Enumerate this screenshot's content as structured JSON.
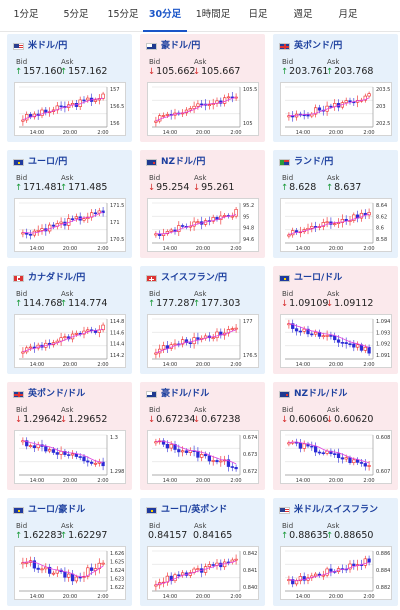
{
  "tabs": [
    {
      "label": "1分足",
      "active": false
    },
    {
      "label": "5分足",
      "active": false
    },
    {
      "label": "15分足",
      "active": false
    },
    {
      "label": "30分足",
      "active": true
    },
    {
      "label": "1時間足",
      "active": false
    },
    {
      "label": "日足",
      "active": false
    },
    {
      "label": "週足",
      "active": false
    },
    {
      "label": "月足",
      "active": false
    }
  ],
  "labels": {
    "bid": "Bid",
    "ask": "Ask"
  },
  "colors": {
    "up_card": "#e7f1fb",
    "down_card": "#fbe9ec",
    "up_arrow": "#1a9a3a",
    "down_arrow": "#d62a2a",
    "candle_up": "#ee2222",
    "candle_down": "#2b2bd6",
    "moving_average": "#e040e0",
    "tab_active": "#1a55c8"
  },
  "pairs": [
    {
      "name": "米ドル/円",
      "flag": "us",
      "direction": "up",
      "bid": "157.160",
      "ask": "157.162",
      "chart": {
        "x_labels": [
          "14:00",
          "20:00",
          "2:00"
        ],
        "y_labels": [
          "157",
          "156.5",
          "156"
        ],
        "trend": "up"
      }
    },
    {
      "name": "豪ドル/円",
      "flag": "au",
      "direction": "down",
      "bid": "105.662",
      "ask": "105.667",
      "chart": {
        "x_labels": [
          "14:00",
          "20:00",
          "2:00"
        ],
        "y_labels": [
          "105.5",
          "105"
        ],
        "trend": "up"
      }
    },
    {
      "name": "英ポンド/円",
      "flag": "gb",
      "direction": "up",
      "bid": "203.761",
      "ask": "203.768",
      "chart": {
        "x_labels": [
          "14:00",
          "20:00",
          "2:00"
        ],
        "y_labels": [
          "203.5",
          "203",
          "202.5"
        ],
        "trend": "up"
      }
    },
    {
      "name": "ユーロ/円",
      "flag": "eu",
      "direction": "up",
      "bid": "171.481",
      "ask": "171.485",
      "chart": {
        "x_labels": [
          "14:00",
          "20:00",
          "2:00"
        ],
        "y_labels": [
          "171.5",
          "171",
          "170.5"
        ],
        "trend": "up"
      }
    },
    {
      "name": "NZドル/円",
      "flag": "nz",
      "direction": "down",
      "bid": "95.254",
      "ask": "95.261",
      "chart": {
        "x_labels": [
          "14:00",
          "20:00",
          "2:00"
        ],
        "y_labels": [
          "95.2",
          "95",
          "94.8",
          "94.6"
        ],
        "trend": "up"
      }
    },
    {
      "name": "ランド/円",
      "flag": "za",
      "direction": "up",
      "bid": "8.628",
      "ask": "8.637",
      "chart": {
        "x_labels": [
          "14:00",
          "20:00",
          "2:00"
        ],
        "y_labels": [
          "8.64",
          "8.62",
          "8.6",
          "8.58"
        ],
        "trend": "up"
      }
    },
    {
      "name": "カナダドル/円",
      "flag": "ca",
      "direction": "up",
      "bid": "114.768",
      "ask": "114.774",
      "chart": {
        "x_labels": [
          "14:00",
          "20:00",
          "2:00"
        ],
        "y_labels": [
          "114.8",
          "114.6",
          "114.4",
          "114.2"
        ],
        "trend": "up"
      }
    },
    {
      "name": "スイスフラン/円",
      "flag": "ch",
      "direction": "up",
      "bid": "177.287",
      "ask": "177.303",
      "chart": {
        "x_labels": [
          "14:00",
          "20:00",
          "2:00"
        ],
        "y_labels": [
          "177",
          "176.5"
        ],
        "trend": "up"
      }
    },
    {
      "name": "ユーロ/ドル",
      "flag": "eu",
      "direction": "down",
      "bid": "1.09109",
      "ask": "1.09112",
      "chart": {
        "x_labels": [
          "14:00",
          "20:00",
          "2:00"
        ],
        "y_labels": [
          "1.094",
          "1.093",
          "1.092",
          "1.091"
        ],
        "trend": "down"
      }
    },
    {
      "name": "英ポンド/ドル",
      "flag": "gb",
      "direction": "down",
      "bid": "1.29642",
      "ask": "1.29652",
      "chart": {
        "x_labels": [
          "14:00",
          "20:00",
          "2:00"
        ],
        "y_labels": [
          "1.3",
          "1.298"
        ],
        "trend": "down"
      }
    },
    {
      "name": "豪ドル/ドル",
      "flag": "au",
      "direction": "down",
      "bid": "0.67234",
      "ask": "0.67238",
      "chart": {
        "x_labels": [
          "14:00",
          "20:00",
          "2:00"
        ],
        "y_labels": [
          "0.674",
          "0.673",
          "0.672"
        ],
        "trend": "down"
      }
    },
    {
      "name": "NZドル/ドル",
      "flag": "nz",
      "direction": "down",
      "bid": "0.60606",
      "ask": "0.60620",
      "chart": {
        "x_labels": [
          "14:00",
          "20:00",
          "2:00"
        ],
        "y_labels": [
          "0.608",
          "0.607"
        ],
        "trend": "down"
      }
    },
    {
      "name": "ユーロ/豪ドル",
      "flag": "eu",
      "direction": "up",
      "bid": "1.62283",
      "ask": "1.62297",
      "chart": {
        "x_labels": [
          "14:00",
          "20:00",
          "2:00"
        ],
        "y_labels": [
          "1.626",
          "1.625",
          "1.624",
          "1.623",
          "1.622"
        ],
        "trend": "vshape"
      }
    },
    {
      "name": "ユーロ/英ポンド",
      "flag": "eu",
      "direction": "none",
      "bid": "0.84157",
      "ask": "0.84165",
      "chart": {
        "x_labels": [
          "14:00",
          "20:00",
          "2:00"
        ],
        "y_labels": [
          "0.842",
          "0.841",
          "0.8405"
        ],
        "trend": "up"
      }
    },
    {
      "name": "米ドル/スイスフラン",
      "flag": "us",
      "direction": "up",
      "bid": "0.88635",
      "ask": "0.88650",
      "chart": {
        "x_labels": [
          "14:00",
          "20:00",
          "2:00"
        ],
        "y_labels": [
          "0.886",
          "0.884",
          "0.882"
        ],
        "trend": "up"
      }
    }
  ]
}
